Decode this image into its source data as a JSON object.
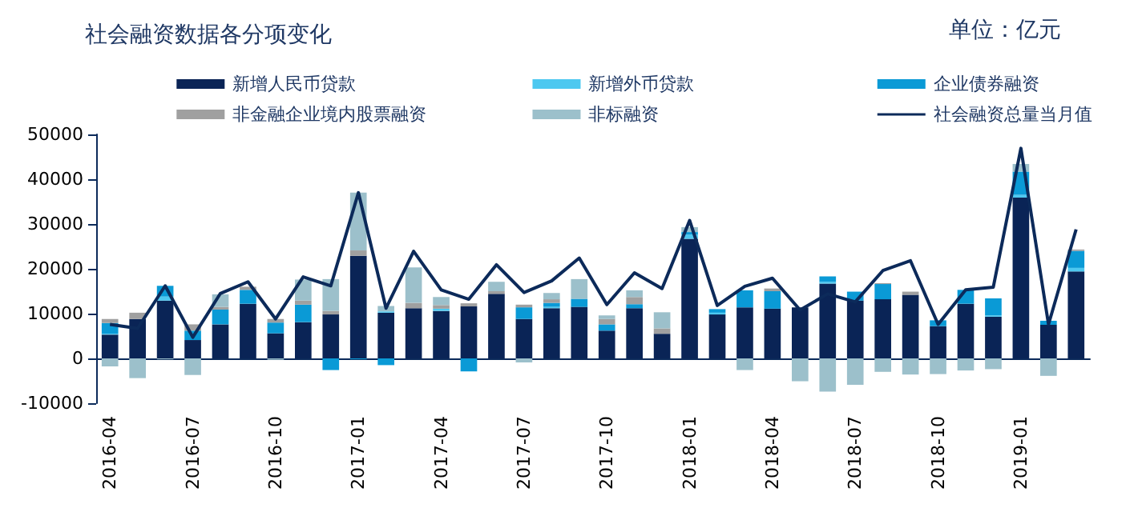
{
  "chart_data": {
    "type": "bar",
    "title": "社会融资数据各分项变化",
    "annotations": [
      "单位：亿元"
    ],
    "stacked": true,
    "legend": "top",
    "grid": false,
    "categories": [
      "2016-04",
      null,
      null,
      "2016-07",
      null,
      null,
      "2016-10",
      null,
      null,
      "2017-01",
      null,
      null,
      "2017-04",
      null,
      null,
      "2017-07",
      null,
      null,
      "2017-10",
      null,
      null,
      "2018-01",
      null,
      null,
      "2018-04",
      null,
      null,
      "2018-07",
      null,
      null,
      "2018-10",
      null,
      null,
      "2019-01",
      null,
      null
    ],
    "ylim": [
      -10000,
      50000
    ],
    "yticks": [
      -10000,
      0,
      10000,
      20000,
      30000,
      40000,
      50000
    ],
    "series": [
      {
        "name": "新增人民币贷款",
        "color": "#0a2456",
        "values": [
          5300,
          8800,
          12900,
          4100,
          7600,
          12200,
          5600,
          8100,
          9800,
          22900,
          10200,
          11200,
          10600,
          11600,
          14400,
          8800,
          11200,
          11500,
          6200,
          11200,
          5500,
          26700,
          9800,
          11400,
          11100,
          11400,
          16700,
          12900,
          13200,
          14200,
          7200,
          12200,
          9300,
          35900,
          7500,
          19400
        ]
      },
      {
        "name": "新增外币贷款",
        "color": "#4dc8f0",
        "values": [
          200,
          0,
          900,
          0,
          0,
          0,
          0,
          0,
          0,
          0,
          300,
          0,
          500,
          0,
          0,
          0,
          300,
          0,
          0,
          0,
          0,
          900,
          400,
          0,
          0,
          0,
          400,
          0,
          0,
          0,
          0,
          0,
          300,
          600,
          0,
          800
        ]
      },
      {
        "name": "企业债券融资",
        "color": "#0a9ad6",
        "values": [
          2400,
          0,
          2400,
          2100,
          3300,
          3100,
          2400,
          3900,
          -2600,
          -200,
          -1500,
          0,
          0,
          -2900,
          0,
          2600,
          900,
          1800,
          1400,
          900,
          0,
          600,
          800,
          3800,
          3900,
          0,
          1200,
          2000,
          3400,
          0,
          1300,
          3100,
          3800,
          5200,
          900,
          3800
        ]
      },
      {
        "name": "非金融企业境内股票融资",
        "color": "#a0a0a0",
        "values": [
          900,
          1400,
          0,
          1400,
          600,
          700,
          800,
          900,
          800,
          1200,
          0,
          1200,
          800,
          700,
          600,
          600,
          800,
          0,
          1200,
          1600,
          1200,
          0,
          0,
          0,
          600,
          null,
          0,
          0,
          200,
          700,
          0,
          0,
          0,
          null,
          0,
          300
        ]
      },
      {
        "name": "非标融资",
        "color": "#9cc0cb",
        "values": [
          -1800,
          -4400,
          -200,
          -3700,
          2800,
          null,
          -300,
          4700,
          7100,
          12900,
          1200,
          7900,
          1800,
          0,
          2100,
          -900,
          1400,
          4400,
          800,
          1500,
          3600,
          1100,
          0,
          -2600,
          0,
          -5100,
          -7400,
          -5900,
          -3000,
          -3600,
          -3500,
          -2700,
          -2400,
          1700,
          -3900,
          0
        ]
      },
      {
        "name": "社会融资总量当月值",
        "type": "line",
        "color": "#0c2a5a",
        "values": [
          7600,
          6700,
          16200,
          4700,
          14500,
          17100,
          8800,
          18200,
          16200,
          37000,
          11200,
          23900,
          15300,
          13200,
          20900,
          14700,
          17300,
          22400,
          12000,
          19100,
          15600,
          30800,
          11800,
          16100,
          17900,
          10800,
          14400,
          12600,
          19600,
          21800,
          7600,
          15300,
          15900,
          46900,
          7600,
          28800
        ]
      }
    ]
  }
}
